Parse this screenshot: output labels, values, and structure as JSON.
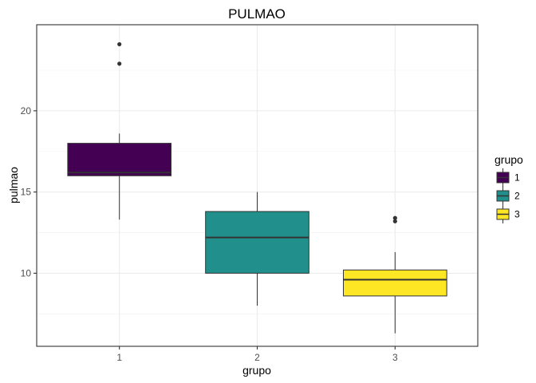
{
  "chart_data": {
    "type": "box",
    "title": "PULMAO",
    "xlabel": "grupo",
    "ylabel": "pulmao",
    "categories": [
      "1",
      "2",
      "3"
    ],
    "ylim": [
      5.5,
      25.3
    ],
    "y_ticks": [
      10,
      15,
      20
    ],
    "y_tick_labels": [
      "10",
      "15",
      "20"
    ],
    "grid": true,
    "legend": {
      "title": "grupo",
      "position": "right",
      "entries": [
        "1",
        "2",
        "3"
      ]
    },
    "series": [
      {
        "category": "1",
        "color": "#440154",
        "whisker_low": 13.3,
        "q1": 16.0,
        "median": 16.2,
        "q3": 18.0,
        "whisker_high": 18.6,
        "outliers": [
          22.9,
          24.1
        ]
      },
      {
        "category": "2",
        "color": "#21908C",
        "whisker_low": 8.0,
        "q1": 10.0,
        "median": 12.2,
        "q3": 13.8,
        "whisker_high": 15.0,
        "outliers": []
      },
      {
        "category": "3",
        "color": "#FDE725",
        "whisker_low": 6.3,
        "q1": 8.6,
        "median": 9.6,
        "q3": 10.2,
        "whisker_high": 11.3,
        "outliers": [
          13.2,
          13.4
        ]
      }
    ]
  }
}
